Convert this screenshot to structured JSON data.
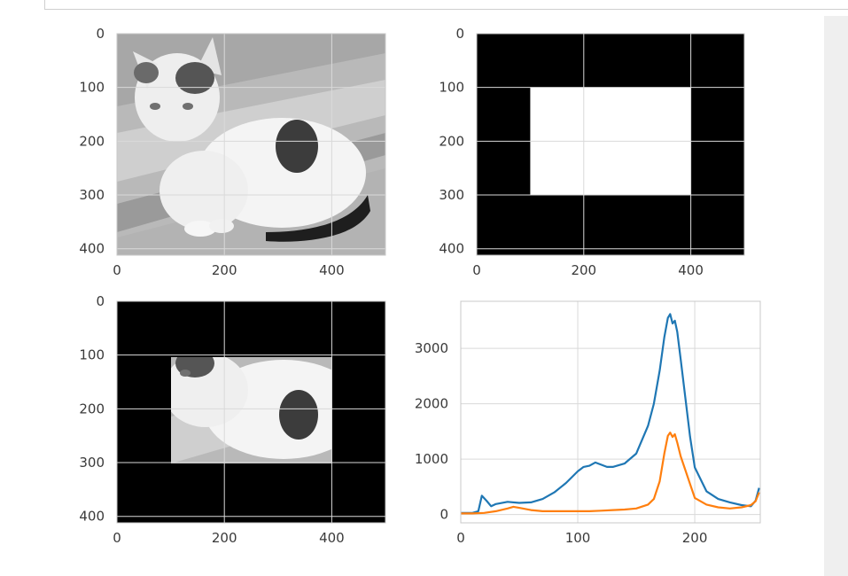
{
  "colors": {
    "grid": "#d9d9d9",
    "axis_frame": "#c8c8c8",
    "series_1": "#1f77b4",
    "series_2": "#ff7f0e",
    "image_black": "#000000",
    "image_white": "#ffffff",
    "photo_gray": "#bdbdbd"
  },
  "chart_data": [
    {
      "type": "image",
      "content": "grayscale photo of a kitten",
      "xticks": [
        "0",
        "200",
        "400"
      ],
      "yticks": [
        "0",
        "100",
        "200",
        "300",
        "400"
      ],
      "xlim": [
        0,
        500
      ],
      "ylim": [
        412,
        0
      ],
      "grid": true
    },
    {
      "type": "image",
      "content": "binary mask: black background with white rectangle",
      "mask_rect": {
        "x0": 100,
        "x1": 400,
        "y0": 100,
        "y1": 300
      },
      "xticks": [
        "0",
        "200",
        "400"
      ],
      "yticks": [
        "0",
        "100",
        "200",
        "300",
        "400"
      ],
      "xlim": [
        0,
        500
      ],
      "ylim": [
        412,
        0
      ],
      "grid": true
    },
    {
      "type": "image",
      "content": "masked grayscale photo: kitten visible inside rectangle, black outside",
      "mask_rect": {
        "x0": 100,
        "x1": 400,
        "y0": 100,
        "y1": 300
      },
      "xticks": [
        "0",
        "200",
        "400"
      ],
      "yticks": [
        "0",
        "100",
        "200",
        "300",
        "400"
      ],
      "xlim": [
        0,
        500
      ],
      "ylim": [
        412,
        0
      ],
      "grid": true
    },
    {
      "type": "line",
      "xlim": [
        0,
        256
      ],
      "ylim": [
        -150,
        3850
      ],
      "xticks": [
        "0",
        "100",
        "200"
      ],
      "yticks": [
        "0",
        "1000",
        "2000",
        "3000"
      ],
      "grid": true,
      "series": [
        {
          "color": "#1f77b4",
          "x": [
            0,
            10,
            15,
            18,
            22,
            26,
            30,
            40,
            50,
            60,
            70,
            80,
            90,
            100,
            105,
            110,
            115,
            120,
            125,
            130,
            140,
            150,
            160,
            165,
            170,
            174,
            177,
            179,
            181,
            183,
            185,
            188,
            192,
            196,
            200,
            210,
            220,
            230,
            240,
            248,
            252,
            255
          ],
          "y": [
            30,
            30,
            60,
            340,
            250,
            150,
            190,
            230,
            210,
            220,
            280,
            400,
            570,
            780,
            860,
            880,
            940,
            900,
            860,
            860,
            920,
            1100,
            1600,
            2000,
            2600,
            3200,
            3550,
            3620,
            3450,
            3500,
            3300,
            2800,
            2100,
            1400,
            850,
            420,
            280,
            220,
            170,
            150,
            250,
            480
          ]
        },
        {
          "color": "#ff7f0e",
          "x": [
            0,
            10,
            20,
            30,
            40,
            45,
            50,
            60,
            70,
            80,
            90,
            100,
            110,
            120,
            130,
            140,
            150,
            160,
            165,
            170,
            174,
            177,
            179,
            181,
            183,
            185,
            188,
            192,
            196,
            200,
            210,
            220,
            230,
            240,
            248,
            252,
            255
          ],
          "y": [
            20,
            20,
            30,
            60,
            110,
            140,
            120,
            80,
            60,
            60,
            60,
            60,
            60,
            70,
            80,
            90,
            110,
            180,
            280,
            600,
            1100,
            1420,
            1480,
            1400,
            1450,
            1300,
            1050,
            800,
            550,
            300,
            180,
            130,
            110,
            130,
            170,
            240,
            400
          ]
        }
      ]
    }
  ]
}
